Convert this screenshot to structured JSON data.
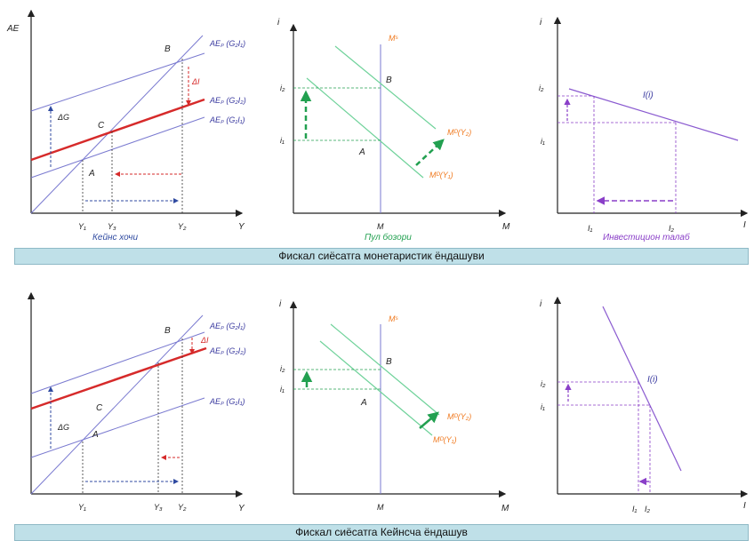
{
  "colors": {
    "blue_line": "#6f6fc8",
    "red_line": "#d62a2a",
    "green": "#22a050",
    "orange": "#f07a20",
    "purple": "#8a3fc8",
    "navy": "#2f4aa0",
    "banner_bg": "#bfe0e8"
  },
  "top": {
    "banner": "Фискал сиёсатга монетаристик ёндашуви",
    "keynes": {
      "y_axis": "AE",
      "x_axis": "Y",
      "ae_upper": "AEₚ (G₂I₁)",
      "ae_red": "AEₚ (G₂I₂)",
      "ae_lower": "AEₚ (G₁I₁)",
      "delta_g": "ΔG",
      "delta_i": "ΔI",
      "pt_b": "B",
      "pt_c": "C",
      "pt_a": "A",
      "y1": "Y₁",
      "y3": "Y₃",
      "y2": "Y₂",
      "caption": "Кейнс хочи"
    },
    "money": {
      "y_axis": "i",
      "x_axis": "M",
      "ms": "Mˢ",
      "md2": "Mᴰ(Y₂)",
      "md1": "Mᴰ(Y₁)",
      "i2": "i₂",
      "i1": "i₁",
      "pt_b": "B",
      "pt_a": "A",
      "m": "M",
      "caption": "Пул бозори"
    },
    "invest": {
      "y_axis": "i",
      "x_axis": "I",
      "curve": "I(i)",
      "i2": "i₂",
      "i1": "i₁",
      "I1": "I₁",
      "I2": "I₂",
      "caption": "Инвестицион талаб"
    }
  },
  "bottom": {
    "banner": "Фискал сиёсатга Кейнсча ёндашув",
    "keynes": {
      "y_axis": "AE",
      "x_axis": "Y",
      "ae_upper": "AEₚ (G₂I₁)",
      "ae_red": "AEₚ (G₂I₂)",
      "ae_lower": "AEₚ (G₁I₁)",
      "delta_g": "ΔG",
      "delta_i": "ΔI",
      "pt_b": "B",
      "pt_c": "C",
      "pt_a": "A",
      "y1": "Y₁",
      "y3": "Y₃",
      "y2": "Y₂"
    },
    "money": {
      "y_axis": "i",
      "x_axis": "M",
      "ms": "Mˢ",
      "md2": "Mᴰ(Y₂)",
      "md1": "Mᴰ(Y₁)",
      "i2": "i₂",
      "i1": "i₁",
      "pt_b": "B",
      "pt_a": "A",
      "m": "M"
    },
    "invest": {
      "y_axis": "i",
      "x_axis": "I",
      "curve": "I(i)",
      "i2": "i₂",
      "i1": "i₁",
      "I1": "I₁",
      "I2": "I₂"
    }
  }
}
